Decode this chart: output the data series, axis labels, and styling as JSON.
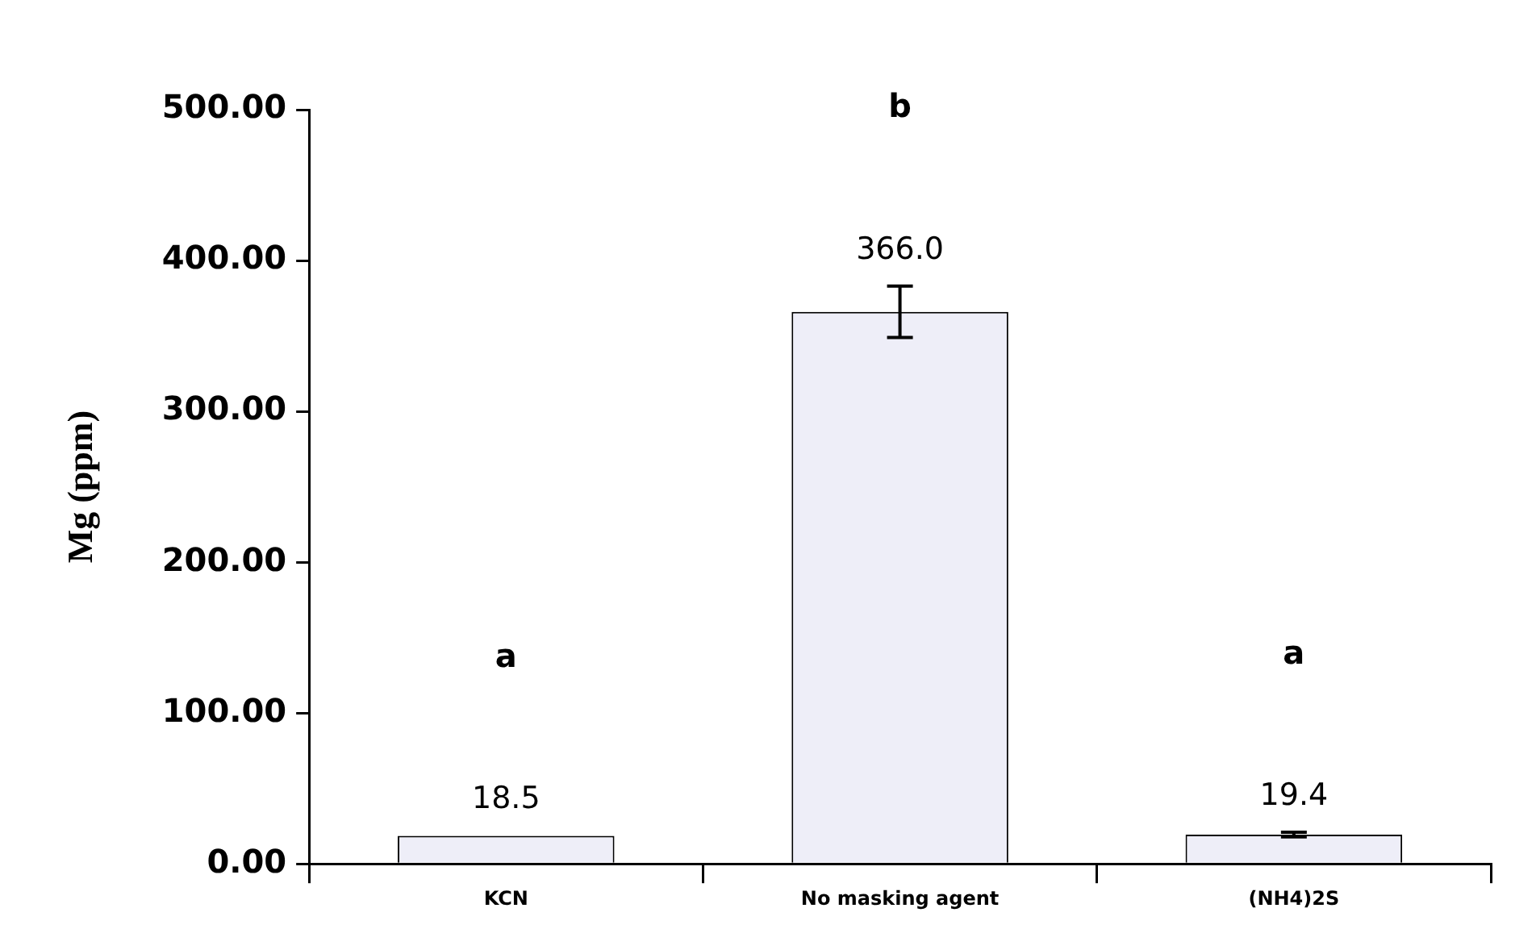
{
  "chart_data": {
    "type": "bar",
    "ylabel": "Mg (ppm)",
    "categories": [
      "KCN",
      "No masking agent",
      "(NH4)2S"
    ],
    "values": [
      18.5,
      366.0,
      19.4
    ],
    "errors": [
      null,
      17,
      1.5
    ],
    "value_labels": [
      "18.5",
      "366.0",
      "19.4"
    ],
    "color": "#eeeef8",
    "ylim": [
      0,
      500
    ],
    "yticks": [
      {
        "value": 0,
        "label": "0.00"
      },
      {
        "value": 100,
        "label": "100.00"
      },
      {
        "value": 200,
        "label": "200.00"
      },
      {
        "value": 300,
        "label": "300.00"
      },
      {
        "value": 400,
        "label": "400.00"
      },
      {
        "value": 500,
        "label": "500.00"
      }
    ],
    "annotations": [
      "a",
      "b",
      "a"
    ],
    "grid": false,
    "legend": false
  }
}
